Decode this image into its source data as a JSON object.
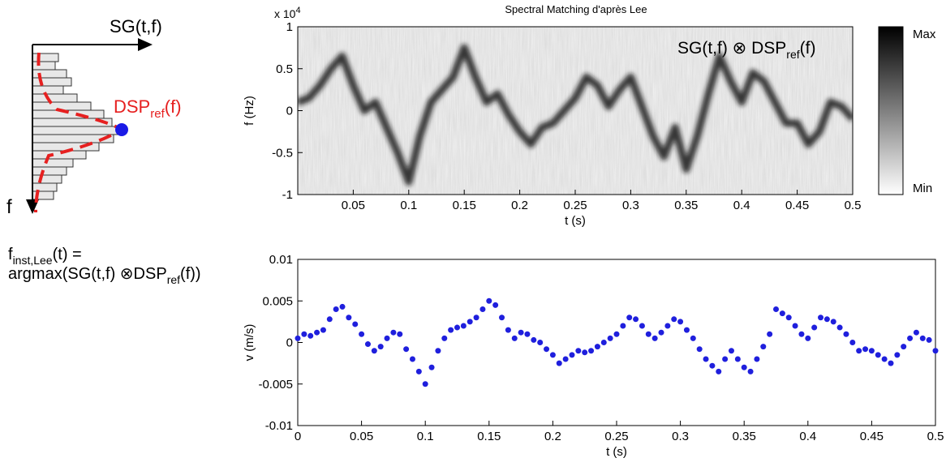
{
  "diagram": {
    "x_axis_label": "SG(t,f)",
    "y_axis_label": "f",
    "dsp_main": "DSP",
    "dsp_sub": "ref",
    "dsp_tail": "(f)",
    "formula_line1_main": "f",
    "formula_line1_sub": "inst,Lee",
    "formula_line1_tail": "(t) =",
    "formula_line2_main": "argmax(SG(t,f) ⊗DSP",
    "formula_line2_sub": "ref",
    "formula_line2_tail": "(f))"
  },
  "chart_data": [
    {
      "type": "heatmap",
      "title": "Spectral Matching d'après Lee",
      "xlabel": "t (s)",
      "ylabel": "f (Hz)",
      "y_multiplier": "x 10",
      "y_multiplier_exp": "4",
      "annotation_main": "SG(t,f) ⊗ DSP",
      "annotation_sub": "ref",
      "annotation_tail": "(f)",
      "colorbar_max": "Max",
      "colorbar_min": "Min",
      "color": "#1a1a1a",
      "x": [
        0,
        0.01,
        0.02,
        0.03,
        0.04,
        0.05,
        0.06,
        0.07,
        0.08,
        0.09,
        0.1,
        0.11,
        0.12,
        0.13,
        0.14,
        0.15,
        0.16,
        0.17,
        0.18,
        0.19,
        0.2,
        0.21,
        0.22,
        0.23,
        0.24,
        0.25,
        0.26,
        0.27,
        0.28,
        0.29,
        0.3,
        0.31,
        0.32,
        0.33,
        0.34,
        0.35,
        0.36,
        0.37,
        0.38,
        0.39,
        0.4,
        0.41,
        0.42,
        0.43,
        0.44,
        0.45,
        0.46,
        0.47,
        0.48,
        0.49,
        0.5
      ],
      "values": [
        1000,
        1500,
        3000,
        5000,
        6500,
        3000,
        0,
        1000,
        -2000,
        -5000,
        -8500,
        -3000,
        1000,
        2500,
        4000,
        7500,
        4000,
        1000,
        2000,
        -500,
        -2500,
        -4000,
        -2000,
        -1500,
        0,
        1500,
        4000,
        3000,
        500,
        2500,
        4000,
        500,
        -3000,
        -5500,
        -2000,
        -7000,
        -3000,
        2000,
        6500,
        3500,
        1000,
        4500,
        3500,
        1000,
        -1500,
        -1500,
        -4000,
        -2500,
        1000,
        500,
        -1000
      ],
      "xlim": [
        0,
        0.5
      ],
      "xticks": [
        0.05,
        0.1,
        0.15,
        0.2,
        0.25,
        0.3,
        0.35,
        0.4,
        0.45,
        0.5
      ],
      "ylim": [
        -10000,
        10000
      ],
      "yticks": [
        {
          "value": -10000,
          "label": "-1"
        },
        {
          "value": -5000,
          "label": "-0.5"
        },
        0,
        {
          "value": 5000,
          "label": "0.5"
        },
        {
          "value": 10000,
          "label": "1"
        }
      ]
    },
    {
      "type": "scatter",
      "xlabel": "t (s)",
      "ylabel": "v (m/s)",
      "color": "#1f1fdd",
      "x": [
        0,
        0.005,
        0.01,
        0.015,
        0.02,
        0.025,
        0.03,
        0.035,
        0.04,
        0.045,
        0.05,
        0.055,
        0.06,
        0.065,
        0.07,
        0.075,
        0.08,
        0.085,
        0.09,
        0.095,
        0.1,
        0.105,
        0.11,
        0.115,
        0.12,
        0.125,
        0.13,
        0.135,
        0.14,
        0.145,
        0.15,
        0.155,
        0.16,
        0.165,
        0.17,
        0.175,
        0.18,
        0.185,
        0.19,
        0.195,
        0.2,
        0.205,
        0.21,
        0.215,
        0.22,
        0.225,
        0.23,
        0.235,
        0.24,
        0.245,
        0.25,
        0.255,
        0.26,
        0.265,
        0.27,
        0.275,
        0.28,
        0.285,
        0.29,
        0.295,
        0.3,
        0.305,
        0.31,
        0.315,
        0.32,
        0.325,
        0.33,
        0.335,
        0.34,
        0.345,
        0.35,
        0.355,
        0.36,
        0.365,
        0.37,
        0.375,
        0.38,
        0.385,
        0.39,
        0.395,
        0.4,
        0.405,
        0.41,
        0.415,
        0.42,
        0.425,
        0.43,
        0.435,
        0.44,
        0.445,
        0.45,
        0.455,
        0.46,
        0.465,
        0.47,
        0.475,
        0.48,
        0.485,
        0.49,
        0.495,
        0.5
      ],
      "values": [
        0.0005,
        0.001,
        0.0008,
        0.0012,
        0.0015,
        0.0028,
        0.004,
        0.0043,
        0.003,
        0.0022,
        0.001,
        -0.0002,
        -0.001,
        -0.0005,
        0.0005,
        0.0012,
        0.001,
        -0.0008,
        -0.002,
        -0.0035,
        -0.005,
        -0.003,
        -0.001,
        0.0005,
        0.0015,
        0.0018,
        0.002,
        0.0025,
        0.003,
        0.004,
        0.005,
        0.0045,
        0.003,
        0.0015,
        0.0005,
        0.0012,
        0.001,
        0.0003,
        0,
        -0.0008,
        -0.0015,
        -0.0025,
        -0.002,
        -0.0015,
        -0.001,
        -0.0012,
        -0.001,
        -0.0005,
        0,
        0.0005,
        0.001,
        0.002,
        0.003,
        0.0028,
        0.002,
        0.001,
        0.0005,
        0.0012,
        0.002,
        0.0028,
        0.0025,
        0.0015,
        0.0005,
        -0.0008,
        -0.002,
        -0.0028,
        -0.0035,
        -0.002,
        -0.001,
        -0.002,
        -0.003,
        -0.0035,
        -0.002,
        -0.0005,
        0.001,
        0.004,
        0.0035,
        0.003,
        0.002,
        0.001,
        0.0005,
        0.0018,
        0.003,
        0.0028,
        0.0025,
        0.0018,
        0.001,
        0,
        -0.001,
        -0.0008,
        -0.001,
        -0.0015,
        -0.002,
        -0.0025,
        -0.0015,
        -0.0005,
        0.0005,
        0.0012,
        0.0005,
        0.0003,
        -0.001
      ],
      "xlim": [
        0,
        0.5
      ],
      "xticks": [
        0,
        0.05,
        0.1,
        0.15,
        0.2,
        0.25,
        0.3,
        0.35,
        0.4,
        0.45,
        0.5
      ],
      "ylim": [
        -0.01,
        0.01
      ],
      "yticks": [
        -0.01,
        -0.005,
        0,
        0.005,
        0.01
      ]
    }
  ]
}
